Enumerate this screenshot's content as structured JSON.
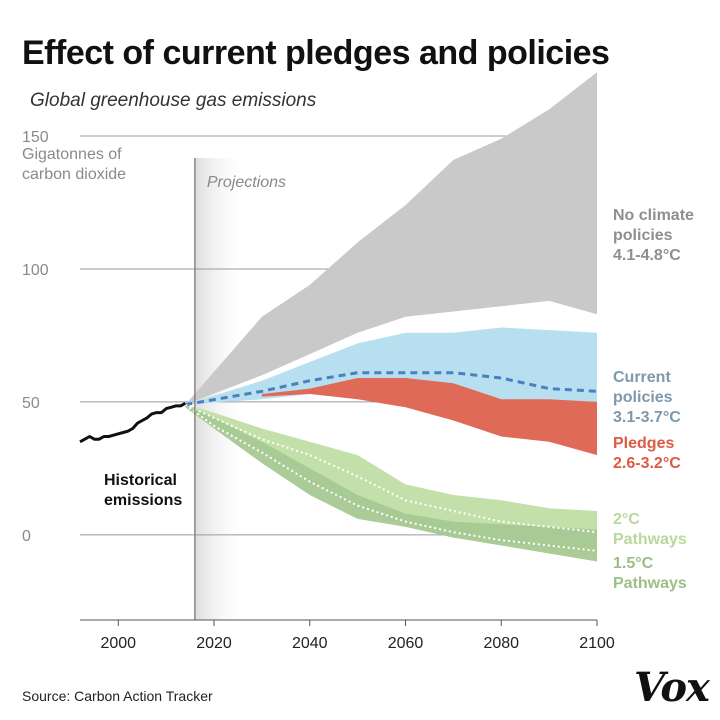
{
  "title": "Effect of current pledges and policies",
  "subtitle": "Global greenhouse gas emissions",
  "source": "Source: Carbon Action Tracker",
  "logo": "Vox",
  "chart_data": {
    "type": "area",
    "ylabel": [
      "Gigatonnes of",
      "carbon dioxide"
    ],
    "ylim": [
      -32,
      150
    ],
    "xlim": [
      1992,
      2100
    ],
    "yticks": [
      150,
      100,
      50,
      0
    ],
    "xticks": [
      2000,
      2020,
      2040,
      2060,
      2080,
      2100
    ],
    "projection_label": "Projections",
    "projection_start": 2016,
    "grid": true,
    "colors": {
      "no_policy": "#c9c9c9",
      "no_policy_text": "#8f8f8f",
      "current": "#b7dff0",
      "current_line": "#4a7fc0",
      "current_text": "#7f98ab",
      "pledges": "#e06a58",
      "pledges_text": "#df5a45",
      "two_c": "#c3e0ab",
      "two_c_text": "#b8d99a",
      "one_five": "#a6c893",
      "one_five_text": "#9bbf87",
      "historical": "#111111"
    },
    "series": [
      {
        "name": "No climate policies 4.1-4.8°C",
        "label_lines": [
          "No climate",
          "policies",
          "4.1-4.8°C"
        ],
        "kind": "band",
        "x": [
          2014,
          2030,
          2040,
          2050,
          2060,
          2070,
          2080,
          2090,
          2100
        ],
        "upper": [
          49,
          82,
          94,
          110,
          124,
          141,
          149,
          160,
          174
        ],
        "lower": [
          49,
          60,
          68,
          76,
          82,
          84,
          86,
          88,
          83
        ]
      },
      {
        "name": "Current policies 3.1-3.7°C",
        "label_lines": [
          "Current",
          "policies",
          "3.1-3.7°C"
        ],
        "kind": "band",
        "x": [
          2014,
          2030,
          2040,
          2050,
          2060,
          2070,
          2080,
          2090,
          2100
        ],
        "upper": [
          49,
          58,
          65,
          72,
          76,
          76,
          78,
          77,
          76
        ],
        "lower": [
          49,
          51,
          53,
          53,
          52,
          51,
          50,
          50,
          50
        ],
        "median": [
          49,
          54,
          58,
          61,
          61,
          61,
          59,
          55,
          54
        ]
      },
      {
        "name": "Pledges 2.6-3.2°C",
        "label_lines": [
          "Pledges",
          "2.6-3.2°C"
        ],
        "kind": "band",
        "x": [
          2030,
          2040,
          2050,
          2060,
          2070,
          2080,
          2090,
          2100
        ],
        "upper": [
          53,
          55,
          59,
          59,
          57,
          51,
          51,
          50
        ],
        "lower": [
          52,
          53,
          51,
          48,
          43,
          37,
          35,
          30
        ]
      },
      {
        "name": "2°C Pathways",
        "label_lines": [
          "2°C",
          "Pathways"
        ],
        "kind": "band",
        "x": [
          2014,
          2020,
          2030,
          2040,
          2050,
          2060,
          2070,
          2080,
          2090,
          2100
        ],
        "upper": [
          49,
          46,
          40,
          35,
          30,
          19,
          15,
          13,
          10,
          9
        ],
        "lower": [
          48,
          42,
          31,
          20,
          10,
          4,
          -1,
          -3,
          -5,
          -7
        ],
        "median": [
          49,
          44,
          36,
          30,
          22,
          13,
          9,
          5,
          3,
          1
        ]
      },
      {
        "name": "1.5°C Pathways",
        "label_lines": [
          "1.5°C",
          "Pathways"
        ],
        "kind": "band",
        "x": [
          2014,
          2020,
          2030,
          2040,
          2050,
          2060,
          2070,
          2080,
          2090,
          2100
        ],
        "upper": [
          49,
          44,
          35,
          25,
          15,
          8,
          5,
          4,
          3,
          2
        ],
        "lower": [
          48,
          40,
          27,
          15,
          6,
          3,
          -1,
          -4,
          -7,
          -10
        ],
        "median": [
          49,
          41,
          31,
          20,
          11,
          5,
          1,
          -2,
          -4,
          -6
        ]
      },
      {
        "name": "Historical emissions",
        "label_lines": [
          "Historical",
          "emissions"
        ],
        "kind": "line",
        "x": [
          1992,
          1993,
          1994,
          1995,
          1996,
          1997,
          1998,
          1999,
          2000,
          2001,
          2002,
          2003,
          2004,
          2005,
          2006,
          2007,
          2008,
          2009,
          2010,
          2011,
          2012,
          2013,
          2014
        ],
        "values": [
          35,
          36,
          37,
          36,
          36,
          37,
          37,
          37.5,
          38,
          38.5,
          39,
          40,
          42,
          43,
          44,
          45.5,
          46,
          46,
          47.5,
          48,
          48.5,
          48.5,
          49.5
        ]
      }
    ]
  }
}
